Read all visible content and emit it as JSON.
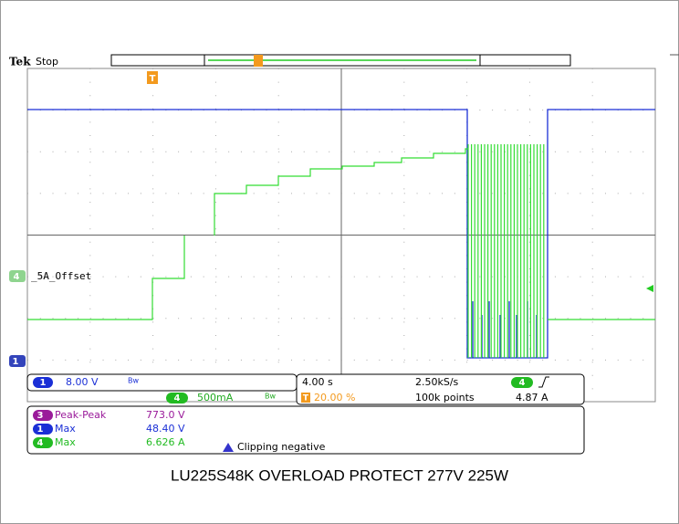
{
  "header": {
    "brand": "Tek",
    "status": "Stop"
  },
  "markers": {
    "trigger": "T",
    "ch4": "4",
    "ch4_label": "_5A_Offset",
    "ch1": "1"
  },
  "vertical": {
    "ch1": {
      "number": "1",
      "scale": "8.00 V",
      "bw": "Bw"
    },
    "ch4": {
      "number": "4",
      "scale": "500mA",
      "bw": "Bw"
    }
  },
  "horizontal": {
    "scale": "4.00 s",
    "trigger_position": "20.00 %",
    "sample_rate": "2.50kS/s",
    "record_length": "100k points"
  },
  "trigger": {
    "channel": "4",
    "level": "4.87 A"
  },
  "measurements": [
    {
      "channel": "3",
      "name": "Peak-Peak",
      "value": "773.0 V"
    },
    {
      "channel": "1",
      "name": "Max",
      "value": "48.40 V"
    },
    {
      "channel": "4",
      "name": "Max",
      "value": "6.626 A"
    }
  ],
  "warning": "Clipping negative",
  "caption": "LU225S48K OVERLOAD PROTECT 277V 225W"
}
